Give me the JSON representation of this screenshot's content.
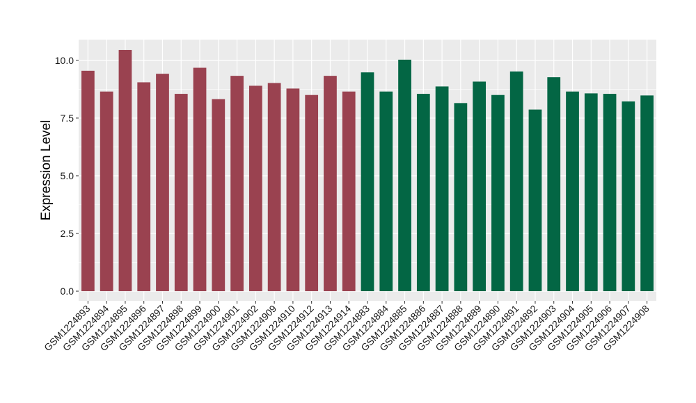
{
  "chart_data": {
    "type": "bar",
    "title": "",
    "xlabel": "",
    "ylabel": "Expression Level",
    "ylim": [
      -0.42,
      10.9
    ],
    "yticks": [
      0.0,
      2.5,
      5.0,
      7.5,
      10.0
    ],
    "ytick_labels": [
      "0.0",
      "2.5",
      "5.0",
      "7.5",
      "10.0"
    ],
    "grid": true,
    "legend": "none",
    "background_color": "#EBEBEB",
    "grid_color": "#FFFFFF",
    "categories": [
      "GSM1224893",
      "GSM1224894",
      "GSM1224895",
      "GSM1224896",
      "GSM1224897",
      "GSM1224898",
      "GSM1224899",
      "GSM1224900",
      "GSM1224901",
      "GSM1224902",
      "GSM1224909",
      "GSM1224910",
      "GSM1224912",
      "GSM1224913",
      "GSM1224914",
      "GSM1224883",
      "GSM1224884",
      "GSM1224885",
      "GSM1224886",
      "GSM1224887",
      "GSM1224888",
      "GSM1224889",
      "GSM1224890",
      "GSM1224891",
      "GSM1224892",
      "GSM1224903",
      "GSM1224904",
      "GSM1224905",
      "GSM1224906",
      "GSM1224907",
      "GSM1224908"
    ],
    "values": [
      9.55,
      8.65,
      10.45,
      9.05,
      9.42,
      8.55,
      9.68,
      8.32,
      9.33,
      8.9,
      9.02,
      8.78,
      8.5,
      9.33,
      8.65,
      9.48,
      8.65,
      10.03,
      8.55,
      8.87,
      8.15,
      9.08,
      8.5,
      9.52,
      7.87,
      9.27,
      8.65,
      8.57,
      8.55,
      8.22,
      8.48
    ],
    "colors": [
      "#9A4250",
      "#9A4250",
      "#9A4250",
      "#9A4250",
      "#9A4250",
      "#9A4250",
      "#9A4250",
      "#9A4250",
      "#9A4250",
      "#9A4250",
      "#9A4250",
      "#9A4250",
      "#9A4250",
      "#9A4250",
      "#9A4250",
      "#036644",
      "#036644",
      "#036644",
      "#036644",
      "#036644",
      "#036644",
      "#036644",
      "#036644",
      "#036644",
      "#036644",
      "#036644",
      "#036644",
      "#036644",
      "#036644",
      "#036644",
      "#036644"
    ]
  }
}
